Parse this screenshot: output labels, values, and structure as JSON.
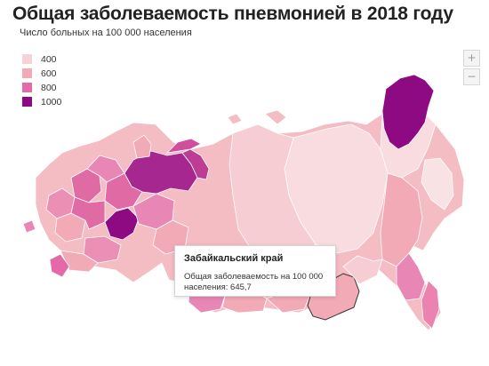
{
  "title": "Общая заболеваемость пневмонией в 2018 году",
  "subtitle": "Число больных на 100 000 населения",
  "legend": [
    {
      "label": "400",
      "color": "#f6d2d6"
    },
    {
      "label": "600",
      "color": "#f2aab6"
    },
    {
      "label": "800",
      "color": "#e469a6"
    },
    {
      "label": "1000",
      "color": "#8e0a82"
    }
  ],
  "zoom": {
    "in_label": "+",
    "out_label": "−"
  },
  "tooltip": {
    "region": "Забайкальский край",
    "line1": "Общая заболеваемость на 100 000",
    "line2": "населения: 645,7"
  }
}
